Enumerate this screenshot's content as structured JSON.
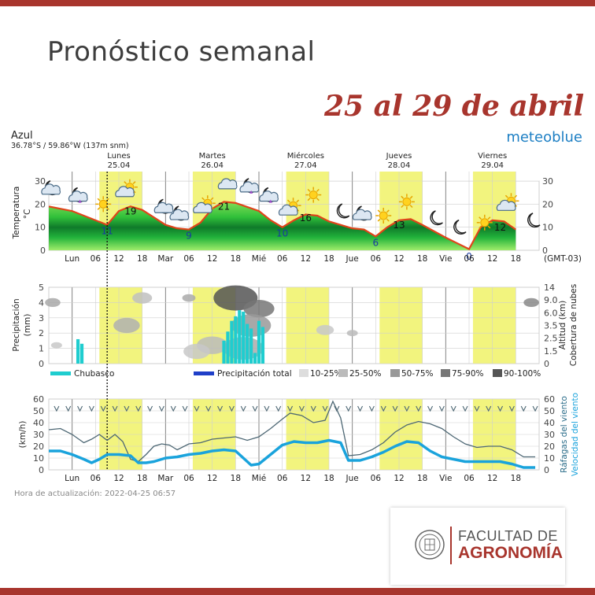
{
  "header": {
    "title": "Pronóstico semanal",
    "subtitle": "25 al 29 de abril"
  },
  "logo": {
    "line1": "FACULTAD DE",
    "line2": "AGRONOMÍA"
  },
  "chart_data": {
    "type": "meteogram",
    "location": "Azul",
    "coords": "36.78°S / 59.86°W (137m snm)",
    "brand": "meteoblue",
    "update": "Hora de actualización: 2022-04-25 06:57",
    "timezone": "(GMT-03)",
    "days": [
      {
        "name": "Lunes",
        "date": "25.04"
      },
      {
        "name": "Martes",
        "date": "26.04"
      },
      {
        "name": "Miércoles",
        "date": "27.04"
      },
      {
        "name": "Jueves",
        "date": "28.04"
      },
      {
        "name": "Viernes",
        "date": "29.04"
      }
    ],
    "xticks": [
      "Lun",
      "06",
      "12",
      "18",
      "Mar",
      "06",
      "12",
      "18",
      "Mié",
      "06",
      "12",
      "18",
      "Jue",
      "06",
      "12",
      "18",
      "Vie",
      "06",
      "12",
      "18"
    ],
    "hour_range": [
      -6,
      120
    ],
    "now_hour": 9,
    "temperature": {
      "ylabel": "Temperatura",
      "unit": "°C",
      "ylim": [
        0,
        30
      ],
      "yticks": [
        0,
        10,
        20,
        30
      ],
      "series": [
        [
          -6,
          19
        ],
        [
          0,
          17
        ],
        [
          6,
          13
        ],
        [
          9,
          11
        ],
        [
          12,
          17
        ],
        [
          15,
          19
        ],
        [
          18,
          17.5
        ],
        [
          24,
          11
        ],
        [
          27,
          9.5
        ],
        [
          30,
          9
        ],
        [
          33,
          12
        ],
        [
          36,
          18
        ],
        [
          39,
          21
        ],
        [
          42,
          20.5
        ],
        [
          48,
          17
        ],
        [
          51,
          13
        ],
        [
          54,
          10
        ],
        [
          57,
          13
        ],
        [
          60,
          15.5
        ],
        [
          63,
          15
        ],
        [
          66,
          12.5
        ],
        [
          72,
          9.5
        ],
        [
          75,
          9
        ],
        [
          78,
          6
        ],
        [
          81,
          10
        ],
        [
          84,
          13
        ],
        [
          87,
          13.5
        ],
        [
          90,
          11
        ],
        [
          96,
          5.5
        ],
        [
          99,
          3
        ],
        [
          102,
          0.5
        ],
        [
          105,
          10
        ],
        [
          108,
          13
        ],
        [
          111,
          12.5
        ],
        [
          114,
          9
        ]
      ],
      "labels": [
        {
          "hour": 9,
          "value": 11,
          "kind": "min"
        },
        {
          "hour": 15,
          "value": 19,
          "kind": "max"
        },
        {
          "hour": 30,
          "value": 9,
          "kind": "min"
        },
        {
          "hour": 39,
          "value": 21,
          "kind": "max"
        },
        {
          "hour": 54,
          "value": 10,
          "kind": "min"
        },
        {
          "hour": 60,
          "value": 16,
          "kind": "max"
        },
        {
          "hour": 78,
          "value": 6,
          "kind": "min"
        },
        {
          "hour": 84,
          "value": 13,
          "kind": "max"
        },
        {
          "hour": 102,
          "value": 0,
          "kind": "min"
        },
        {
          "hour": 110,
          "value": 12,
          "kind": "max"
        }
      ],
      "icons": [
        {
          "hour": -5,
          "value": 27,
          "icon": "cloud-moon-icon"
        },
        {
          "hour": 2,
          "value": 24,
          "icon": "cloud-moon-rain-icon"
        },
        {
          "hour": 8,
          "value": 20,
          "icon": "sun-icon"
        },
        {
          "hour": 14,
          "value": 26,
          "icon": "cloud-sun-icon"
        },
        {
          "hour": 24,
          "value": 19,
          "icon": "cloud-moon-icon"
        },
        {
          "hour": 28,
          "value": 16,
          "icon": "cloud-moon-icon"
        },
        {
          "hour": 34,
          "value": 19,
          "icon": "cloud-sun-icon"
        },
        {
          "hour": 40,
          "value": 28,
          "icon": "cloud-icon"
        },
        {
          "hour": 46,
          "value": 28,
          "icon": "cloud-moon-rain-icon"
        },
        {
          "hour": 51,
          "value": 24,
          "icon": "cloud-moon-rain-icon"
        },
        {
          "hour": 56,
          "value": 18,
          "icon": "cloud-sun-icon"
        },
        {
          "hour": 62,
          "value": 24,
          "icon": "sun-icon"
        },
        {
          "hour": 70,
          "value": 17,
          "icon": "moon-icon"
        },
        {
          "hour": 75,
          "value": 16,
          "icon": "cloud-moon-icon"
        },
        {
          "hour": 80,
          "value": 15,
          "icon": "sun-icon"
        },
        {
          "hour": 86,
          "value": 21,
          "icon": "sun-icon"
        },
        {
          "hour": 94,
          "value": 14,
          "icon": "moon-icon"
        },
        {
          "hour": 100,
          "value": 10,
          "icon": "moon-icon"
        },
        {
          "hour": 106,
          "value": 12,
          "icon": "sun-icon"
        },
        {
          "hour": 112,
          "value": 20,
          "icon": "cloud-sun-icon"
        },
        {
          "hour": 119,
          "value": 13,
          "icon": "moon-icon"
        }
      ]
    },
    "precipitation": {
      "ylabel": "Precipitación",
      "unit": "(mm)",
      "ylim": [
        0,
        5
      ],
      "yticks": [
        0,
        1,
        2,
        3,
        4,
        5
      ],
      "right_ticks": [
        "0",
        "1.5",
        "2.5",
        "3.5",
        "6.0",
        "9.0",
        "14"
      ],
      "right_label": "Altitud (km)",
      "right_label2": "Cobertura de nubes",
      "shower_bars": [
        {
          "hour": 1.5,
          "value": 1.6
        },
        {
          "hour": 2.5,
          "value": 1.3
        },
        {
          "hour": 39,
          "value": 1.5
        },
        {
          "hour": 40,
          "value": 2.1
        },
        {
          "hour": 41,
          "value": 2.8
        },
        {
          "hour": 42,
          "value": 3.1
        },
        {
          "hour": 43,
          "value": 3.5
        },
        {
          "hour": 44,
          "value": 3.4
        },
        {
          "hour": 45,
          "value": 2.6
        },
        {
          "hour": 46,
          "value": 2.3
        },
        {
          "hour": 47,
          "value": 0.7
        },
        {
          "hour": 48,
          "value": 2.8
        },
        {
          "hour": 49,
          "value": 2.4
        }
      ],
      "legend": {
        "shower": "Chubasco",
        "total": "Precipitación total",
        "cover": [
          "10-25%",
          "25-50%",
          "50-75%",
          "75-90%",
          "90-100%"
        ]
      }
    },
    "wind": {
      "ylabel": "(km/h)",
      "ylim": [
        0,
        60
      ],
      "yticks": [
        0,
        10,
        20,
        30,
        40,
        50,
        60
      ],
      "right_label_gusts": "Ráfagas del viento",
      "right_label_speed": "Velocidad del viento",
      "gusts": [
        [
          -6,
          34
        ],
        [
          -3,
          35
        ],
        [
          0,
          30
        ],
        [
          3,
          23
        ],
        [
          5,
          26
        ],
        [
          7,
          30
        ],
        [
          9,
          25
        ],
        [
          11,
          30
        ],
        [
          13,
          24
        ],
        [
          15,
          9
        ],
        [
          17,
          7
        ],
        [
          19,
          13
        ],
        [
          21,
          20
        ],
        [
          23,
          22
        ],
        [
          25,
          21
        ],
        [
          27,
          17
        ],
        [
          30,
          22
        ],
        [
          33,
          23
        ],
        [
          36,
          26
        ],
        [
          39,
          27
        ],
        [
          42,
          28
        ],
        [
          45,
          25
        ],
        [
          48,
          28
        ],
        [
          51,
          35
        ],
        [
          54,
          43
        ],
        [
          56,
          48
        ],
        [
          59,
          46
        ],
        [
          62,
          40
        ],
        [
          65,
          42
        ],
        [
          67,
          58
        ],
        [
          69,
          44
        ],
        [
          71,
          12
        ],
        [
          74,
          13
        ],
        [
          77,
          17
        ],
        [
          80,
          23
        ],
        [
          83,
          32
        ],
        [
          86,
          38
        ],
        [
          89,
          41
        ],
        [
          92,
          39
        ],
        [
          95,
          35
        ],
        [
          98,
          28
        ],
        [
          101,
          22
        ],
        [
          104,
          19
        ],
        [
          107,
          20
        ],
        [
          110,
          20
        ],
        [
          113,
          17
        ],
        [
          116,
          11
        ],
        [
          119,
          11
        ]
      ],
      "speed": [
        [
          -6,
          16
        ],
        [
          -3,
          16
        ],
        [
          0,
          13
        ],
        [
          3,
          9
        ],
        [
          5,
          6
        ],
        [
          7,
          9
        ],
        [
          9,
          13
        ],
        [
          12,
          13
        ],
        [
          15,
          12
        ],
        [
          17,
          6
        ],
        [
          19,
          6
        ],
        [
          21,
          7
        ],
        [
          24,
          10
        ],
        [
          27,
          11
        ],
        [
          30,
          13
        ],
        [
          33,
          14
        ],
        [
          36,
          16
        ],
        [
          39,
          17
        ],
        [
          42,
          16
        ],
        [
          44,
          10
        ],
        [
          46,
          4
        ],
        [
          48,
          5
        ],
        [
          51,
          13
        ],
        [
          54,
          21
        ],
        [
          57,
          24
        ],
        [
          60,
          23
        ],
        [
          63,
          23
        ],
        [
          66,
          25
        ],
        [
          69,
          23
        ],
        [
          71,
          8
        ],
        [
          74,
          8
        ],
        [
          77,
          11
        ],
        [
          80,
          15
        ],
        [
          83,
          20
        ],
        [
          86,
          24
        ],
        [
          89,
          23
        ],
        [
          92,
          16
        ],
        [
          95,
          11
        ],
        [
          98,
          9
        ],
        [
          101,
          7
        ],
        [
          104,
          7
        ],
        [
          107,
          7
        ],
        [
          110,
          7
        ],
        [
          113,
          5
        ],
        [
          116,
          2
        ],
        [
          119,
          2
        ]
      ]
    },
    "colors": {
      "daylight": "#f2f47e",
      "temp_line": "#e0441a",
      "shower": "#1fcdcf",
      "total": "#1f3fc8",
      "speed": "#1aa3dc",
      "gusts": "#4d6774",
      "axis_text": "#444444",
      "min_label": "#1a3aa0"
    }
  }
}
